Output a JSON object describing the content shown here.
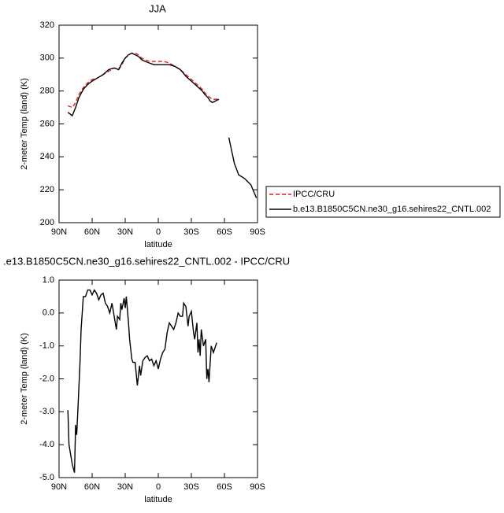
{
  "chart_data": [
    {
      "type": "line",
      "title": "JJA",
      "xlabel": "latitude",
      "ylabel": "2-meter Temp (land) (K)",
      "xlim": [
        90,
        -90
      ],
      "ylim": [
        200,
        320
      ],
      "xticks": [
        {
          "value": 90,
          "label": "90N"
        },
        {
          "value": 60,
          "label": "60N"
        },
        {
          "value": 30,
          "label": "30N"
        },
        0,
        {
          "value": -30,
          "label": "30S"
        },
        {
          "value": -60,
          "label": "60S"
        },
        {
          "value": -90,
          "label": "90S"
        }
      ],
      "yticks": [
        200,
        220,
        240,
        260,
        280,
        300,
        320
      ],
      "legend": "right",
      "x": [
        82,
        78,
        75,
        72,
        68,
        64,
        60,
        55,
        50,
        45,
        40,
        36,
        33,
        30,
        27,
        24,
        21,
        18,
        15,
        12,
        8,
        4,
        0,
        -5,
        -10,
        -15,
        -20,
        -25,
        -30,
        -35,
        -40,
        -42,
        -45,
        -47,
        -49,
        -52,
        -55,
        -60,
        -64,
        -69,
        -73,
        -78,
        -84,
        -89
      ],
      "series": [
        {
          "name": "IPCC/CRU",
          "color": "#e41a1c",
          "dash": true,
          "values": [
            271,
            270,
            273,
            278,
            282,
            285,
            287,
            288,
            290,
            292,
            294,
            293,
            296,
            300,
            302,
            303,
            303,
            302,
            300,
            299,
            298,
            298,
            298,
            298,
            297,
            295,
            293,
            290,
            287,
            284,
            281,
            279,
            277,
            276,
            275,
            275,
            275,
            null,
            null,
            null,
            null,
            null,
            null,
            null
          ]
        },
        {
          "name": "b.e13.B1850C5CN.ne30_g16.sehires22_CNTL.002",
          "color": "#000000",
          "dash": false,
          "values": [
            267,
            265,
            270,
            276,
            281,
            284,
            286,
            288,
            290,
            293,
            294,
            293,
            297,
            300,
            302,
            303,
            302,
            301,
            299,
            298,
            297,
            296,
            296,
            296,
            296,
            295,
            293,
            289,
            286,
            283,
            280,
            278,
            276,
            274,
            273,
            274,
            275,
            null,
            251.7,
            236,
            229,
            227,
            223,
            215
          ]
        }
      ]
    },
    {
      "type": "line",
      "title": ".e13.B1850C5CN.ne30_g16.sehires22_CNTL.002 - IPCC/CRU",
      "xlabel": "latitude",
      "ylabel": "2-meter Temp (land) (K)",
      "xlim": [
        90,
        -90
      ],
      "ylim": [
        -5,
        1
      ],
      "xticks": [
        {
          "value": 90,
          "label": "90N"
        },
        {
          "value": 60,
          "label": "60N"
        },
        {
          "value": 30,
          "label": "30N"
        },
        0,
        {
          "value": -30,
          "label": "30S"
        },
        {
          "value": -60,
          "label": "60S"
        },
        {
          "value": -90,
          "label": "90S"
        }
      ],
      "yticks": [
        {
          "value": -5,
          "label": "-5.0"
        },
        {
          "value": -4,
          "label": "-4.0"
        },
        {
          "value": -3,
          "label": "-3.0"
        },
        {
          "value": -2,
          "label": "-2.0"
        },
        {
          "value": -1,
          "label": "-1.0"
        },
        {
          "value": 0,
          "label": "0.0"
        },
        {
          "value": 1,
          "label": "1.0"
        }
      ],
      "color": "#000000",
      "x": [
        82,
        81,
        80,
        78,
        76,
        75,
        74,
        73,
        71,
        70,
        68,
        66,
        64,
        62,
        60,
        58,
        56,
        54,
        52,
        50,
        48,
        46,
        44,
        42,
        40,
        38,
        37,
        35,
        34,
        33,
        31,
        30,
        29,
        27,
        26,
        24,
        23,
        21,
        19,
        17,
        16,
        14,
        12,
        10,
        8,
        6,
        4,
        2,
        0,
        -2,
        -4,
        -6,
        -8,
        -10,
        -12,
        -14,
        -16,
        -18,
        -20,
        -22,
        -23,
        -25,
        -27,
        -28,
        -30,
        -32,
        -33,
        -35,
        -36,
        -37,
        -38,
        -39,
        -41,
        -43,
        -44,
        -45,
        -46,
        -48,
        -50,
        -53
      ],
      "values": [
        -2.95,
        -4.0,
        -4.2,
        -4.6,
        -4.85,
        -3.4,
        -3.7,
        -3.0,
        -1.5,
        -0.5,
        0.5,
        0.5,
        0.7,
        0.7,
        0.55,
        0.7,
        0.6,
        0.4,
        0.55,
        0.6,
        0.3,
        0.2,
        0.0,
        0.3,
        -0.1,
        -0.5,
        -0.1,
        -0.2,
        0.3,
        0.1,
        0.45,
        0.15,
        0.5,
        -0.3,
        -0.8,
        -1.4,
        -1.5,
        -1.5,
        -2.2,
        -1.6,
        -1.9,
        -1.45,
        -1.35,
        -1.3,
        -1.45,
        -1.4,
        -1.6,
        -1.45,
        -1.7,
        -1.4,
        -1.2,
        -1.1,
        -0.6,
        -0.3,
        -0.4,
        -0.5,
        -0.3,
        0.0,
        -0.1,
        -0.1,
        0.3,
        0.2,
        -0.4,
        -0.1,
        0.05,
        -0.6,
        -0.8,
        -0.3,
        -1.2,
        -0.8,
        -1.3,
        -0.5,
        -1.0,
        -0.8,
        -2.0,
        -1.7,
        -2.1,
        -1.0,
        -1.2,
        -0.9
      ]
    }
  ]
}
